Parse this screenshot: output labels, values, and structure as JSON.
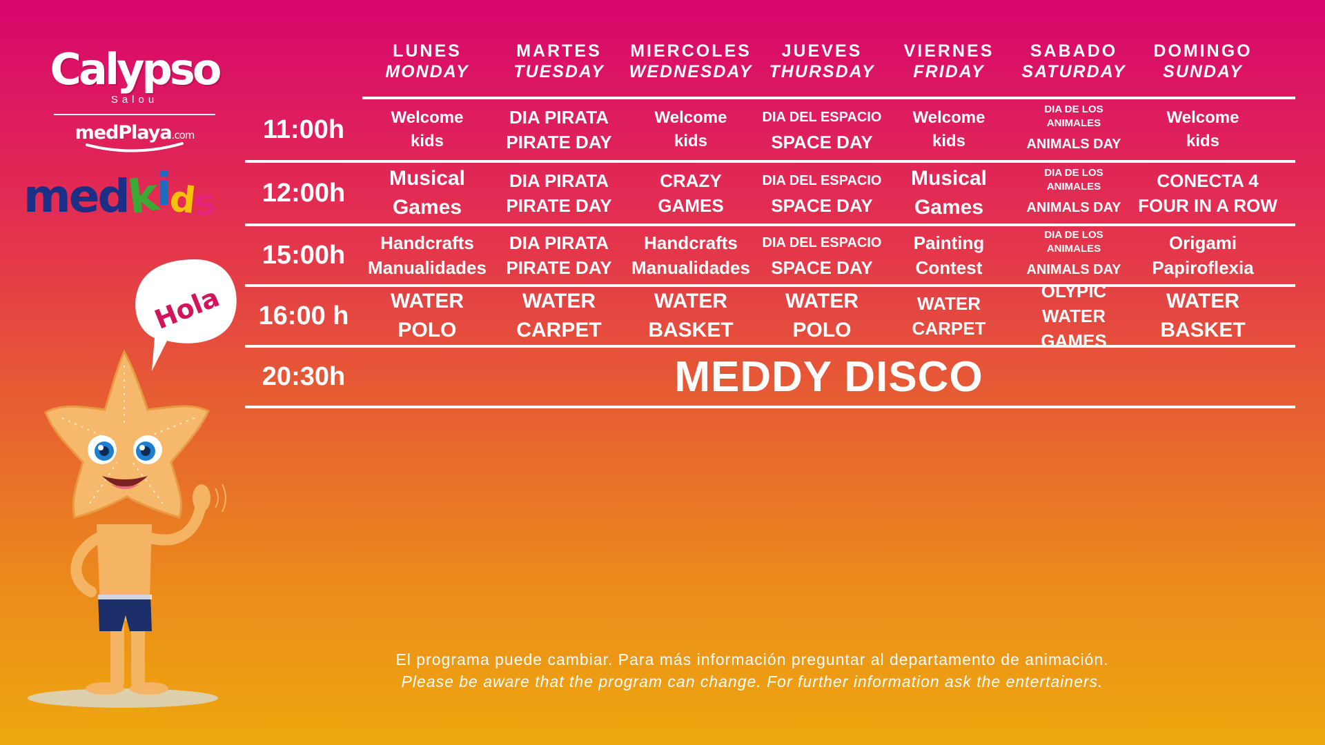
{
  "brand": {
    "calypso": "Calypso",
    "location": "Salou",
    "medplaya": "medPlaya",
    "medplaya_suffix": ".com",
    "medkids": {
      "med": "med",
      "k": "k",
      "i": "i",
      "d": "d",
      "s": "s"
    },
    "mascot_speech": "Hola"
  },
  "days": [
    {
      "es": "LUNES",
      "en": "MONDAY"
    },
    {
      "es": "MARTES",
      "en": "TUESDAY"
    },
    {
      "es": "MIERCOLES",
      "en": "WEDNESDAY"
    },
    {
      "es": "JUEVES",
      "en": "THURSDAY"
    },
    {
      "es": "VIERNES",
      "en": "FRIDAY"
    },
    {
      "es": "SABADO",
      "en": "SATURDAY"
    },
    {
      "es": "DOMINGO",
      "en": "SUNDAY"
    }
  ],
  "rows": [
    {
      "time": "11:00h",
      "cells": [
        {
          "l1": "Welcome",
          "l2": "kids"
        },
        {
          "l1": "DIA PIRATA",
          "l2": "PIRATE DAY"
        },
        {
          "l1": "Welcome",
          "l2": "kids"
        },
        {
          "l1": "DIA DEL ESPACIO",
          "l2": "SPACE DAY"
        },
        {
          "l1": "Welcome",
          "l2": "kids"
        },
        {
          "t1": "DIA DE LOS",
          "t2": "ANIMALES",
          "l2": "ANIMALS DAY"
        },
        {
          "l1": "Welcome",
          "l2": "kids"
        }
      ]
    },
    {
      "time": "12:00h",
      "cells": [
        {
          "l1": "Musical",
          "l2": "Games"
        },
        {
          "l1": "DIA PIRATA",
          "l2": "PIRATE DAY"
        },
        {
          "l1": "CRAZY",
          "l2": "GAMES"
        },
        {
          "l1": "DIA DEL ESPACIO",
          "l2": "SPACE DAY"
        },
        {
          "l1": "Musical",
          "l2": "Games"
        },
        {
          "t1": "DIA DE LOS",
          "t2": "ANIMALES",
          "l2": "ANIMALS DAY"
        },
        {
          "l1": "CONECTA 4",
          "l2": "FOUR IN A ROW"
        }
      ]
    },
    {
      "time": "15:00h",
      "cells": [
        {
          "l1": "Handcrafts",
          "l2": "Manualidades"
        },
        {
          "l1": "DIA PIRATA",
          "l2": "PIRATE DAY"
        },
        {
          "l1": "Handcrafts",
          "l2": "Manualidades"
        },
        {
          "l1": "DIA DEL ESPACIO",
          "l2": "SPACE DAY"
        },
        {
          "l1": "Painting",
          "l2": "Contest"
        },
        {
          "t1": "DIA DE LOS",
          "t2": "ANIMALES",
          "l2": "ANIMALS DAY"
        },
        {
          "l1": "Origami",
          "l2": "Papiroflexia"
        }
      ]
    },
    {
      "time": "16:00 h",
      "cells": [
        {
          "l1": "WATER POLO"
        },
        {
          "l1": "WATER",
          "l2": "CARPET"
        },
        {
          "l1": "WATER",
          "l2": "BASKET"
        },
        {
          "l1": "WATER",
          "l2": "POLO"
        },
        {
          "l1": "WATER",
          "l2": "CARPET"
        },
        {
          "l1": "OLYPIC",
          "l2": "WATER GAMES"
        },
        {
          "l1": "WATER",
          "l2": "BASKET"
        }
      ]
    },
    {
      "time": "20:30h",
      "event": "MEDDY DISCO"
    }
  ],
  "footer": {
    "es": "El programa puede cambiar. Para más información preguntar  al departamento de animación.",
    "en": "Please be aware that the program can change. For further information ask the entertainers."
  },
  "colors": {
    "gradient_top": "#d8066e",
    "gradient_bottom": "#eea80f",
    "medkids_blue": "#1c2f86",
    "medkids_green": "#3aa935",
    "medkids_yellow": "#f6c10b",
    "medkids_pink": "#e5237b"
  }
}
